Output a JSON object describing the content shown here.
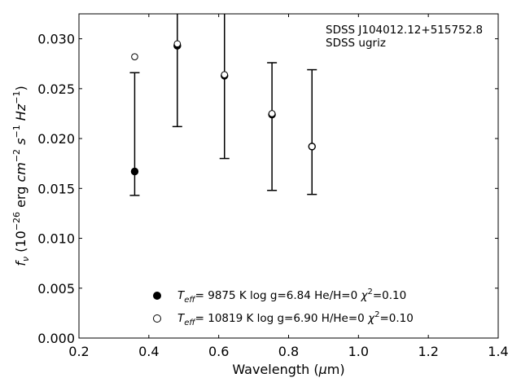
{
  "chart_data": {
    "type": "scatter",
    "xlabel_prefix": "Wavelength (",
    "xlabel_mu": "μ",
    "xlabel_suffix": "m)",
    "ylabel_parts": [
      "f",
      "ν",
      " (10",
      "−26",
      " erg ",
      "cm",
      "−2",
      " ",
      "s",
      "−1",
      " ",
      "Hz",
      "−1",
      ")"
    ],
    "xlim": [
      0.2,
      1.4
    ],
    "ylim": [
      0.0,
      0.0325
    ],
    "xticks": [
      0.2,
      0.4,
      0.6,
      0.8,
      1.0,
      1.2,
      1.4
    ],
    "xtick_labels": [
      "0.2",
      "0.4",
      "0.6",
      "0.8",
      "1.0",
      "1.2",
      "1.4"
    ],
    "yticks": [
      0.0,
      0.005,
      0.01,
      0.015,
      0.02,
      0.025,
      0.03
    ],
    "ytick_labels": [
      "0.000",
      "0.005",
      "0.010",
      "0.015",
      "0.020",
      "0.025",
      "0.030"
    ],
    "annotation_lines": [
      "SDSS J104012.12+515752.8",
      "SDSS ugriz"
    ],
    "observed": {
      "x": [
        0.3595,
        0.4815,
        0.6165,
        0.7525,
        0.867
      ],
      "y": [
        0.0167,
        0.0294,
        0.0263,
        0.0225,
        0.0192
      ],
      "yerr_low": [
        0.0143,
        0.0212,
        0.018,
        0.0148,
        0.0144
      ],
      "yerr_high": [
        0.0266,
        0.036,
        0.0345,
        0.0276,
        0.0269
      ]
    },
    "series": [
      {
        "marker": "filled",
        "x": [
          0.3595,
          0.4815,
          0.6165,
          0.7525,
          0.867
        ],
        "y": [
          0.0167,
          0.0293,
          0.0263,
          0.0224,
          0.0192
        ],
        "legend": {
          "teff_sym": "T",
          "teff_sub": "eff",
          "text": "=  9875 K  log g=6.84  He/H=0  ",
          "chi_sym": "χ",
          "chi_sup": "2",
          "chi_text": "=0.10"
        }
      },
      {
        "marker": "open",
        "x": [
          0.3595,
          0.4815,
          0.6165,
          0.7525,
          0.867
        ],
        "y": [
          0.0282,
          0.0295,
          0.0264,
          0.0225,
          0.0192
        ],
        "legend": {
          "teff_sym": "T",
          "teff_sub": "eff",
          "text": "= 10819 K  log g=6.90  H/He=0  ",
          "chi_sym": "χ",
          "chi_sup": "2",
          "chi_text": "=0.10"
        }
      }
    ],
    "legend_position": "lower-center",
    "grid": false,
    "colors": {
      "marker": "#000000",
      "axis": "#000000",
      "background": "#ffffff"
    }
  }
}
